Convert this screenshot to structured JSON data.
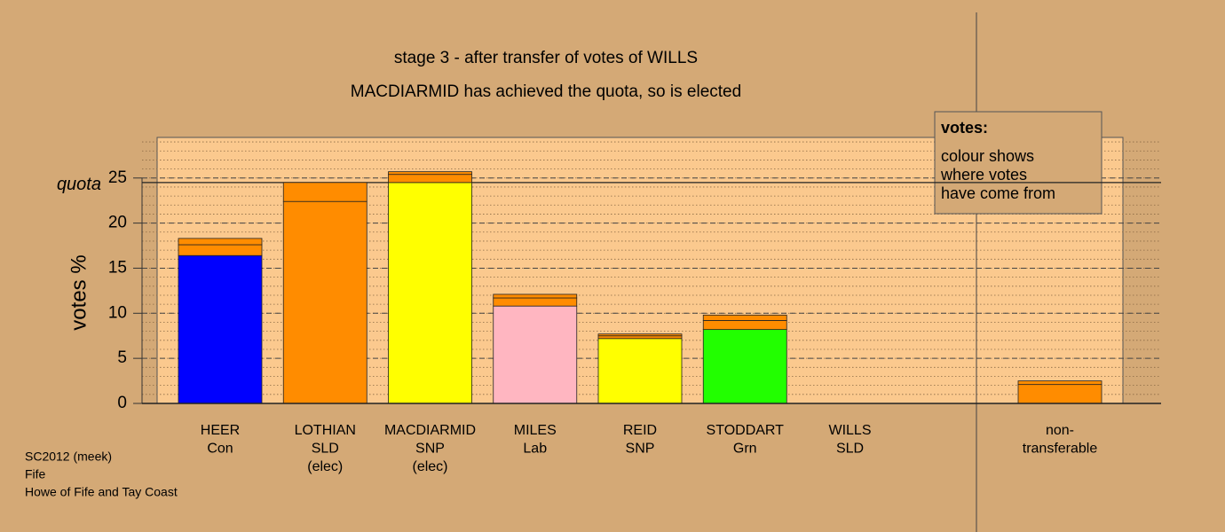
{
  "chart_data": {
    "type": "stacked-bar",
    "title": "stage 3 - after transfer of votes of WILLS",
    "subtitle": "MACDIARMID has achieved the quota, so is elected",
    "y_label": "votes %",
    "categories": [
      [
        "HEER",
        "Con"
      ],
      [
        "LOTHIAN",
        "SLD",
        "(elec)"
      ],
      [
        "MACDIARMID",
        "SNP",
        "(elec)"
      ],
      [
        "MILES",
        "Lab"
      ],
      [
        "REID",
        "SNP"
      ],
      [
        "STODDART",
        "Grn"
      ],
      [
        "WILLS",
        "SLD"
      ],
      [
        "non-",
        "transferable"
      ]
    ],
    "series": [
      {
        "values": [
          16.4,
          22.4,
          24.5,
          10.8,
          7.2,
          8.2,
          0,
          2.1
        ],
        "colors": [
          "#0000ff",
          "#ff8c00",
          "#ffff00",
          "#ffb6c1",
          "#ffff00",
          "#22ff00",
          "#ff8c00",
          "#ff8c00"
        ]
      },
      {
        "values": [
          1.2,
          2.1,
          0.9,
          0.9,
          0.3,
          1.0,
          0,
          0.4
        ],
        "colors": [
          "#ff8c00",
          "#ff8c00",
          "#ff8c00",
          "#ff8c00",
          "#ff8c00",
          "#ff8c00",
          "#ff8c00",
          "#ff8c00"
        ]
      },
      {
        "values": [
          0.7,
          0,
          0.3,
          0.4,
          0.2,
          0.6,
          0,
          0
        ],
        "colors": [
          "#ff8c00",
          "#ff8c00",
          "#ff8c00",
          "#ff8c00",
          "#ff8c00",
          "#ff8c00",
          "#ff8c00",
          "#ff8c00"
        ]
      }
    ],
    "ylim": [
      0,
      29.5
    ],
    "yticks": [
      0,
      5,
      10,
      15,
      20,
      25
    ],
    "grid": true,
    "minor_grid_step": 1,
    "quota": {
      "label": "quota",
      "value": 24.5
    },
    "legend_box": {
      "title": "votes:",
      "lines": [
        "colour shows",
        "where votes",
        "have come from"
      ]
    },
    "footer": [
      "SC2012 (meek)",
      "Fife",
      "Howe of Fife and Tay Coast"
    ]
  }
}
